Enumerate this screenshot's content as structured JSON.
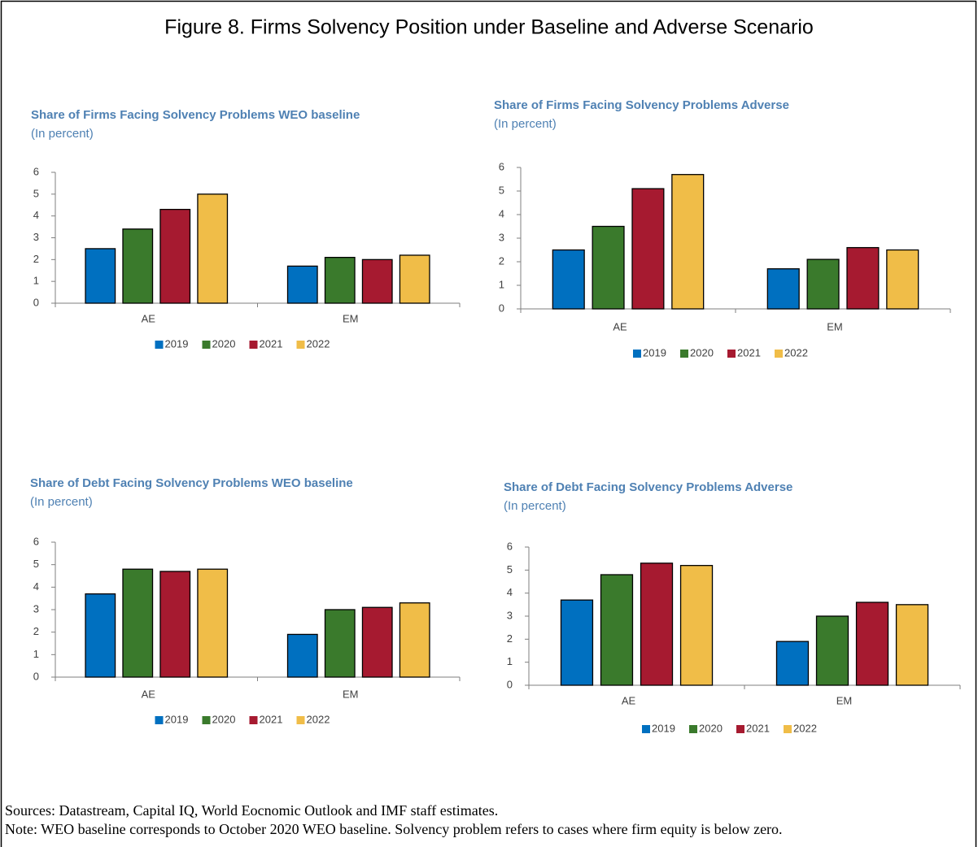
{
  "title": "Figure 8. Firms Solvency Position under Baseline and Adverse Scenario",
  "sources": "Sources: Datastream, Capital IQ, World Eocnomic Outlook and IMF staff estimates.",
  "note": "Note: WEO baseline corresponds to October 2020 WEO baseline. Solvency problem refers to cases where firm equity is below zero.",
  "chart_data": [
    {
      "type": "bar",
      "title": "Share of Firms Facing Solvency Problems WEO baseline",
      "subtitle": "(In percent)",
      "categories": [
        "AE",
        "EM"
      ],
      "series": [
        {
          "name": "2019",
          "color": "#0070c0",
          "values": [
            2.5,
            1.7
          ]
        },
        {
          "name": "2020",
          "color": "#3a7a2c",
          "values": [
            3.4,
            2.1
          ]
        },
        {
          "name": "2021",
          "color": "#a61a30",
          "values": [
            4.3,
            2.0
          ]
        },
        {
          "name": "2022",
          "color": "#f0bd48",
          "values": [
            5.0,
            2.2
          ]
        }
      ],
      "ylim": [
        0,
        6
      ],
      "yticks": [
        0,
        1,
        2,
        3,
        4,
        5,
        6
      ],
      "legend": "bottom"
    },
    {
      "type": "bar",
      "title": "Share of Firms Facing Solvency Problems Adverse",
      "subtitle": "(In percent)",
      "categories": [
        "AE",
        "EM"
      ],
      "series": [
        {
          "name": "2019",
          "color": "#0070c0",
          "values": [
            2.5,
            1.7
          ]
        },
        {
          "name": "2020",
          "color": "#3a7a2c",
          "values": [
            3.5,
            2.1
          ]
        },
        {
          "name": "2021",
          "color": "#a61a30",
          "values": [
            5.1,
            2.6
          ]
        },
        {
          "name": "2022",
          "color": "#f0bd48",
          "values": [
            5.7,
            2.5
          ]
        }
      ],
      "ylim": [
        0,
        6
      ],
      "yticks": [
        0,
        1,
        2,
        3,
        4,
        5,
        6
      ],
      "legend": "bottom"
    },
    {
      "type": "bar",
      "title": "Share of Debt Facing Solvency Problems WEO baseline",
      "subtitle": "(In percent)",
      "categories": [
        "AE",
        "EM"
      ],
      "series": [
        {
          "name": "2019",
          "color": "#0070c0",
          "values": [
            3.7,
            1.9
          ]
        },
        {
          "name": "2020",
          "color": "#3a7a2c",
          "values": [
            4.8,
            3.0
          ]
        },
        {
          "name": "2021",
          "color": "#a61a30",
          "values": [
            4.7,
            3.1
          ]
        },
        {
          "name": "2022",
          "color": "#f0bd48",
          "values": [
            4.8,
            3.3
          ]
        }
      ],
      "ylim": [
        0,
        6
      ],
      "yticks": [
        0,
        1,
        2,
        3,
        4,
        5,
        6
      ],
      "legend": "bottom"
    },
    {
      "type": "bar",
      "title": "Share of Debt Facing Solvency Problems Adverse",
      "subtitle": "(In percent)",
      "categories": [
        "AE",
        "EM"
      ],
      "series": [
        {
          "name": "2019",
          "color": "#0070c0",
          "values": [
            3.7,
            1.9
          ]
        },
        {
          "name": "2020",
          "color": "#3a7a2c",
          "values": [
            4.8,
            3.0
          ]
        },
        {
          "name": "2021",
          "color": "#a61a30",
          "values": [
            5.3,
            3.6
          ]
        },
        {
          "name": "2022",
          "color": "#f0bd48",
          "values": [
            5.2,
            3.5
          ]
        }
      ],
      "ylim": [
        0,
        6
      ],
      "yticks": [
        0,
        1,
        2,
        3,
        4,
        5,
        6
      ],
      "legend": "bottom"
    }
  ]
}
